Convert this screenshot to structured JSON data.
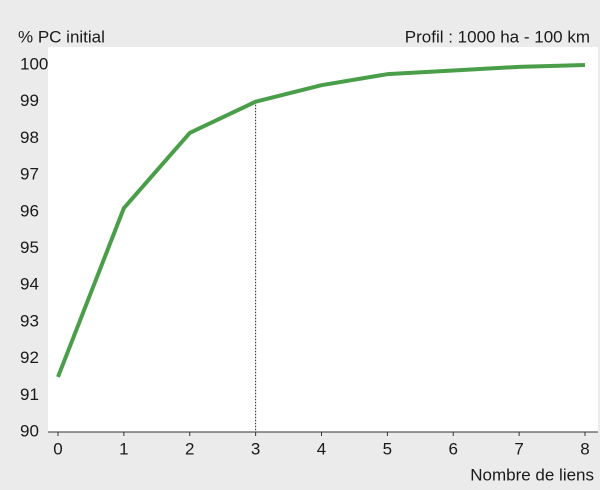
{
  "chart_data": {
    "type": "line",
    "y_label": "% PC initial",
    "subtitle": "Profil : 1000 ha - 100 km",
    "x_label": "Nombre de liens",
    "x": [
      0,
      1,
      2,
      3,
      4,
      5,
      6,
      7,
      8
    ],
    "series": [
      {
        "name": "Profil : 1000 ha - 100 km",
        "color": "#4a9e4a",
        "values": [
          91.5,
          96.1,
          98.15,
          99.0,
          99.45,
          99.75,
          99.85,
          99.95,
          100.0
        ]
      }
    ],
    "marker_x": 3,
    "xlim": [
      0,
      8
    ],
    "xticks": [
      0,
      1,
      2,
      3,
      4,
      5,
      6,
      7,
      8
    ],
    "ylim": [
      90,
      100
    ],
    "yticks": [
      90,
      91,
      92,
      93,
      94,
      95,
      96,
      97,
      98,
      99,
      100
    ],
    "grid": false
  }
}
